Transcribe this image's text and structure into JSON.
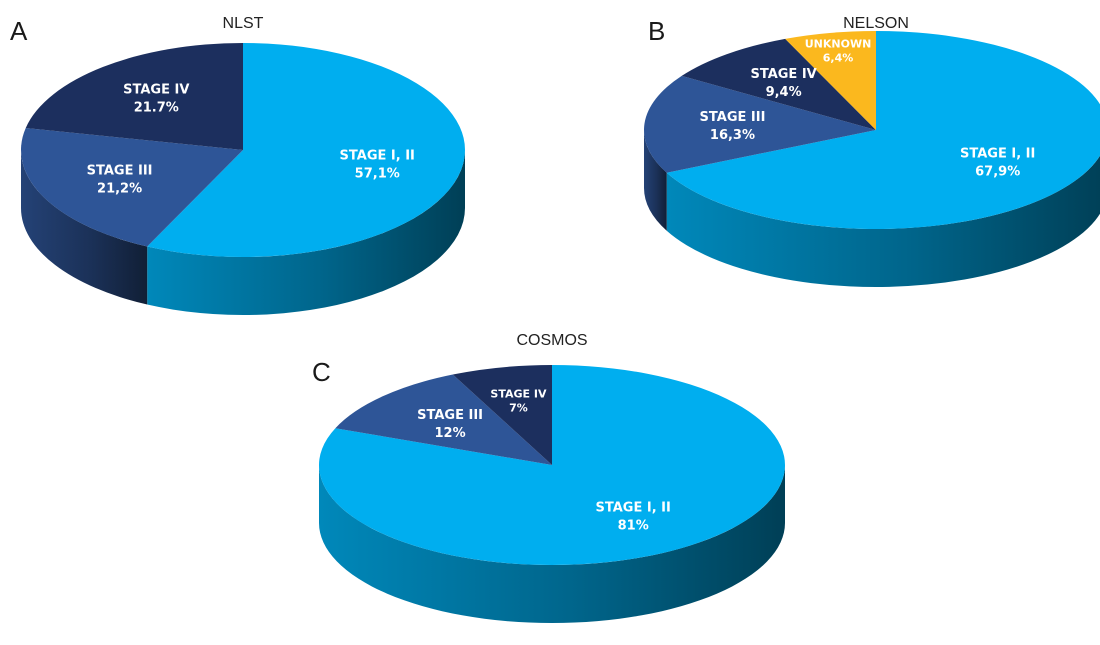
{
  "chart_data": [
    {
      "type": "pie",
      "panel": "A",
      "title": "NLST",
      "slices": [
        {
          "label": "STAGE I, II",
          "value": 57.1,
          "text": "57,1%",
          "color": "#00aeef"
        },
        {
          "label": "STAGE III",
          "value": 21.2,
          "text": "21,2%",
          "color": "#2e5597"
        },
        {
          "label": "STAGE IV",
          "value": 21.7,
          "text": "21.7%",
          "color": "#1c2f5e"
        }
      ]
    },
    {
      "type": "pie",
      "panel": "B",
      "title": "NELSON",
      "slices": [
        {
          "label": "STAGE I, II",
          "value": 67.9,
          "text": "67,9%",
          "color": "#00aeef"
        },
        {
          "label": "STAGE III",
          "value": 16.3,
          "text": "16,3%",
          "color": "#2e5597"
        },
        {
          "label": "STAGE IV",
          "value": 9.4,
          "text": "9,4%",
          "color": "#1c2f5e"
        },
        {
          "label": "UNKNOWN",
          "value": 6.4,
          "text": "6,4%",
          "color": "#fbb81e"
        }
      ]
    },
    {
      "type": "pie",
      "panel": "C",
      "title": "COSMOS",
      "slices": [
        {
          "label": "STAGE I, II",
          "value": 81,
          "text": "81%",
          "color": "#00aeef"
        },
        {
          "label": "STAGE III",
          "value": 12,
          "text": "12%",
          "color": "#2e5597"
        },
        {
          "label": "STAGE IV",
          "value": 7,
          "text": "7%",
          "color": "#1c2f5e"
        }
      ]
    }
  ]
}
